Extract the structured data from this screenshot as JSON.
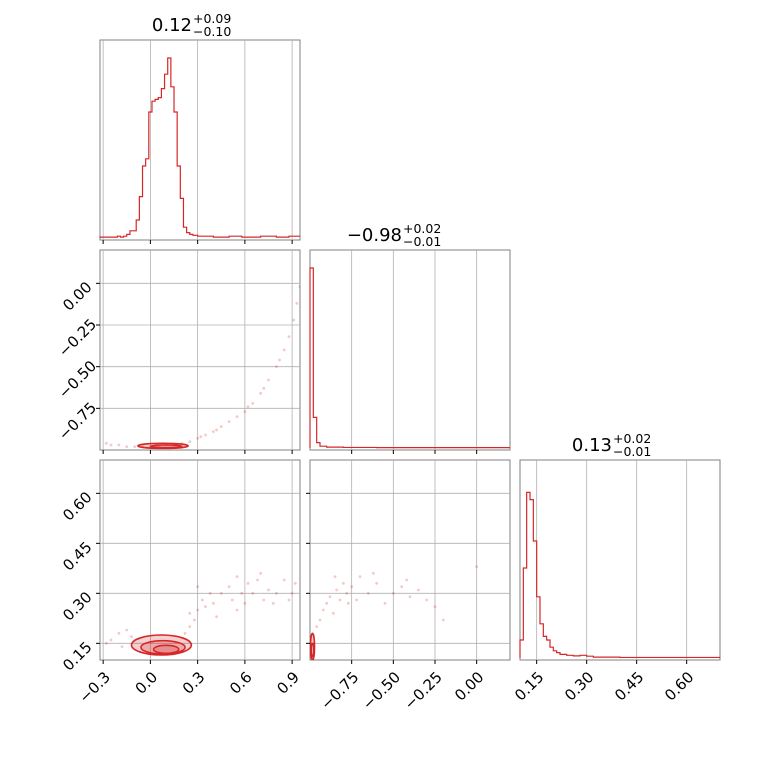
{
  "chart_data": {
    "type": "corner",
    "colors": {
      "series": "#d62728",
      "frame": "#808080",
      "grid": "#b0b0b0"
    },
    "panels": {
      "hist_p1": {
        "type": "histogram",
        "title_value": "0.12",
        "title_plus": "+0.09",
        "title_minus": "−0.10",
        "xlim": [
          -0.32,
          0.95
        ],
        "grid_x": [
          -0.3,
          0.0,
          0.3,
          0.6,
          0.9
        ],
        "steps": [
          [
            -0.32,
            0.005
          ],
          [
            -0.21,
            0.01
          ],
          [
            -0.19,
            0.005
          ],
          [
            -0.17,
            0.01
          ],
          [
            -0.15,
            0.02
          ],
          [
            -0.13,
            0.04
          ],
          [
            -0.11,
            0.04
          ],
          [
            -0.09,
            0.1
          ],
          [
            -0.07,
            0.23
          ],
          [
            -0.05,
            0.4
          ],
          [
            -0.03,
            0.44
          ],
          [
            -0.01,
            0.7
          ],
          [
            0.01,
            0.76
          ],
          [
            0.03,
            0.77
          ],
          [
            0.05,
            0.78
          ],
          [
            0.07,
            0.83
          ],
          [
            0.09,
            0.91
          ],
          [
            0.11,
            1.0
          ],
          [
            0.13,
            0.84
          ],
          [
            0.15,
            0.7
          ],
          [
            0.17,
            0.4
          ],
          [
            0.19,
            0.22
          ],
          [
            0.21,
            0.06
          ],
          [
            0.23,
            0.03
          ],
          [
            0.25,
            0.02
          ],
          [
            0.27,
            0.015
          ],
          [
            0.3,
            0.01
          ],
          [
            0.4,
            0.005
          ],
          [
            0.5,
            0.01
          ],
          [
            0.58,
            0.005
          ],
          [
            0.7,
            0.01
          ],
          [
            0.8,
            0.005
          ],
          [
            0.88,
            0.01
          ],
          [
            0.95,
            0.01
          ]
        ]
      },
      "hist_p2": {
        "type": "histogram",
        "title_value": "−0.98",
        "title_plus": "+0.02",
        "title_minus": "−0.01",
        "xlim": [
          -1.0,
          0.2
        ],
        "grid_x": [
          -0.75,
          -0.5,
          -0.25,
          0.0
        ],
        "steps": [
          [
            -1.0,
            1.0
          ],
          [
            -0.98,
            0.17
          ],
          [
            -0.96,
            0.03
          ],
          [
            -0.94,
            0.01
          ],
          [
            -0.9,
            0.005
          ],
          [
            -0.8,
            0.003
          ],
          [
            -0.6,
            0.002
          ],
          [
            -0.4,
            0.002
          ],
          [
            -0.2,
            0.002
          ],
          [
            0.2,
            0.002
          ]
        ]
      },
      "hist_p3": {
        "type": "histogram",
        "title_value": "0.13",
        "title_plus": "+0.02",
        "title_minus": "−0.01",
        "xlim": [
          0.1,
          0.7
        ],
        "grid_x": [
          0.15,
          0.3,
          0.45,
          0.6
        ],
        "steps": [
          [
            0.1,
            0.1
          ],
          [
            0.11,
            0.5
          ],
          [
            0.12,
            0.92
          ],
          [
            0.13,
            0.88
          ],
          [
            0.14,
            0.65
          ],
          [
            0.15,
            0.34
          ],
          [
            0.16,
            0.19
          ],
          [
            0.17,
            0.12
          ],
          [
            0.18,
            0.1
          ],
          [
            0.19,
            0.06
          ],
          [
            0.2,
            0.04
          ],
          [
            0.21,
            0.03
          ],
          [
            0.22,
            0.02
          ],
          [
            0.24,
            0.015
          ],
          [
            0.26,
            0.012
          ],
          [
            0.28,
            0.015
          ],
          [
            0.3,
            0.01
          ],
          [
            0.32,
            0.005
          ],
          [
            0.4,
            0.003
          ],
          [
            0.7,
            0.003
          ]
        ]
      },
      "scatter_p1_p2": {
        "type": "scatter",
        "xlim": [
          -0.32,
          0.95
        ],
        "ylim": [
          -1.0,
          0.2
        ],
        "grid_x": [
          -0.3,
          0.0,
          0.3,
          0.6,
          0.9
        ],
        "grid_y": [
          0.0,
          -0.25,
          -0.5,
          -0.75
        ],
        "y_tick_labels": [
          "0.00",
          "−0.25",
          "−0.50",
          "−0.75"
        ],
        "points": [
          [
            -0.28,
            -0.96
          ],
          [
            -0.25,
            -0.97
          ],
          [
            -0.2,
            -0.97
          ],
          [
            -0.15,
            -0.98
          ],
          [
            -0.1,
            -0.98
          ],
          [
            -0.05,
            -0.98
          ],
          [
            0.0,
            -0.98
          ],
          [
            0.05,
            -0.98
          ],
          [
            0.1,
            -0.97
          ],
          [
            0.15,
            -0.97
          ],
          [
            0.2,
            -0.96
          ],
          [
            0.25,
            -0.95
          ],
          [
            0.3,
            -0.93
          ],
          [
            0.35,
            -0.91
          ],
          [
            0.4,
            -0.89
          ],
          [
            0.45,
            -0.86
          ],
          [
            0.5,
            -0.83
          ],
          [
            0.55,
            -0.8
          ],
          [
            0.6,
            -0.77
          ],
          [
            0.65,
            -0.72
          ],
          [
            0.7,
            -0.66
          ],
          [
            0.75,
            -0.58
          ],
          [
            0.8,
            -0.5
          ],
          [
            0.85,
            -0.4
          ],
          [
            0.88,
            -0.32
          ],
          [
            0.91,
            -0.22
          ],
          [
            0.93,
            -0.12
          ],
          [
            0.95,
            -0.02
          ],
          [
            0.62,
            -0.74
          ],
          [
            0.72,
            -0.63
          ],
          [
            0.82,
            -0.46
          ],
          [
            0.32,
            -0.92
          ],
          [
            0.42,
            -0.88
          ]
        ],
        "contours": [
          {
            "cx": 0.08,
            "cy": -0.975,
            "rx": 0.16,
            "ry": 0.015
          },
          {
            "cx": 0.1,
            "cy": -0.978,
            "rx": 0.1,
            "ry": 0.008
          }
        ]
      },
      "scatter_p1_p3": {
        "type": "scatter",
        "xlim": [
          -0.32,
          0.95
        ],
        "ylim": [
          0.1,
          0.7
        ],
        "grid_x": [
          -0.3,
          0.0,
          0.3,
          0.6,
          0.9
        ],
        "grid_y": [
          0.6,
          0.45,
          0.3,
          0.15
        ],
        "x_tick_labels": [
          "−0.3",
          "0.0",
          "0.3",
          "0.6",
          "0.9"
        ],
        "y_tick_labels": [
          "0.60",
          "0.45",
          "0.30",
          "0.15"
        ],
        "points": [
          [
            -0.25,
            0.16
          ],
          [
            -0.2,
            0.18
          ],
          [
            -0.18,
            0.14
          ],
          [
            -0.15,
            0.19
          ],
          [
            -0.12,
            0.17
          ],
          [
            -0.28,
            0.15
          ],
          [
            0.22,
            0.18
          ],
          [
            0.25,
            0.2
          ],
          [
            0.28,
            0.22
          ],
          [
            0.3,
            0.25
          ],
          [
            0.33,
            0.28
          ],
          [
            0.35,
            0.26
          ],
          [
            0.38,
            0.3
          ],
          [
            0.4,
            0.27
          ],
          [
            0.45,
            0.3
          ],
          [
            0.5,
            0.32
          ],
          [
            0.52,
            0.28
          ],
          [
            0.55,
            0.35
          ],
          [
            0.58,
            0.3
          ],
          [
            0.6,
            0.27
          ],
          [
            0.62,
            0.33
          ],
          [
            0.65,
            0.3
          ],
          [
            0.7,
            0.36
          ],
          [
            0.72,
            0.28
          ],
          [
            0.75,
            0.31
          ],
          [
            0.8,
            0.3
          ],
          [
            0.85,
            0.34
          ],
          [
            0.88,
            0.28
          ],
          [
            0.9,
            0.3
          ],
          [
            0.92,
            0.33
          ],
          [
            0.3,
            0.32
          ],
          [
            0.42,
            0.23
          ],
          [
            0.55,
            0.25
          ],
          [
            0.68,
            0.34
          ],
          [
            0.78,
            0.27
          ],
          [
            0.25,
            0.24
          ]
        ],
        "contours": [
          {
            "cx": 0.07,
            "cy": 0.145,
            "rx": 0.19,
            "ry": 0.03
          },
          {
            "cx": 0.08,
            "cy": 0.138,
            "rx": 0.14,
            "ry": 0.02
          },
          {
            "cx": 0.1,
            "cy": 0.132,
            "rx": 0.08,
            "ry": 0.012
          }
        ]
      },
      "scatter_p2_p3": {
        "type": "scatter",
        "xlim": [
          -1.0,
          0.2
        ],
        "ylim": [
          0.1,
          0.7
        ],
        "grid_x": [
          -0.75,
          -0.5,
          -0.25,
          0.0
        ],
        "grid_y": [
          0.6,
          0.45,
          0.3,
          0.15
        ],
        "x_tick_labels": [
          "−0.75",
          "−0.50",
          "−0.25",
          "0.00"
        ],
        "points": [
          [
            -0.96,
            0.2
          ],
          [
            -0.94,
            0.22
          ],
          [
            -0.92,
            0.25
          ],
          [
            -0.9,
            0.27
          ],
          [
            -0.88,
            0.29
          ],
          [
            -0.86,
            0.24
          ],
          [
            -0.84,
            0.31
          ],
          [
            -0.82,
            0.28
          ],
          [
            -0.8,
            0.33
          ],
          [
            -0.78,
            0.3
          ],
          [
            -0.75,
            0.32
          ],
          [
            -0.72,
            0.28
          ],
          [
            -0.7,
            0.35
          ],
          [
            -0.65,
            0.3
          ],
          [
            -0.6,
            0.33
          ],
          [
            -0.55,
            0.27
          ],
          [
            -0.5,
            0.3
          ],
          [
            -0.45,
            0.32
          ],
          [
            -0.4,
            0.29
          ],
          [
            -0.35,
            0.31
          ],
          [
            -0.3,
            0.28
          ],
          [
            -0.25,
            0.26
          ],
          [
            -0.2,
            0.22
          ],
          [
            0.0,
            0.38
          ],
          [
            -0.85,
            0.35
          ],
          [
            -0.77,
            0.27
          ],
          [
            -0.62,
            0.36
          ],
          [
            -0.42,
            0.34
          ]
        ],
        "contours": [
          {
            "cx": -0.985,
            "cy": 0.14,
            "rx": 0.012,
            "ry": 0.04
          },
          {
            "cx": -0.985,
            "cy": 0.13,
            "rx": 0.008,
            "ry": 0.02
          }
        ]
      }
    }
  }
}
